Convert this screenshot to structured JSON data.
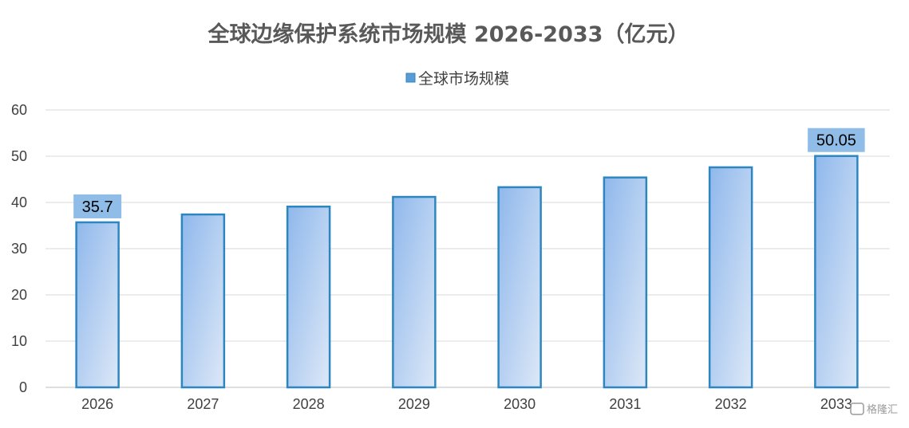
{
  "chart_data": {
    "type": "bar",
    "title": "全球边缘保护系统市场规模 2026-2033（亿元）",
    "legend": {
      "position": "top",
      "entries": [
        "全球市场规模"
      ]
    },
    "categories": [
      "2026",
      "2027",
      "2028",
      "2029",
      "2030",
      "2031",
      "2032",
      "2033"
    ],
    "series": [
      {
        "name": "全球市场规模",
        "values": [
          35.7,
          37.4,
          39.1,
          41.2,
          43.3,
          45.4,
          47.6,
          50.05
        ]
      }
    ],
    "data_labels": [
      {
        "category": "2026",
        "text": "35.7"
      },
      {
        "category": "2033",
        "text": "50.05"
      }
    ],
    "ylim": [
      0,
      60
    ],
    "yticks": [
      "0",
      "10",
      "20",
      "30",
      "40",
      "50",
      "60"
    ],
    "grid": true,
    "colors": {
      "bar_fill_start": "#8fb8ec",
      "bar_fill_end": "#dde8f7",
      "bar_border": "#2e86c1",
      "label_box": "#8fbde8",
      "gridline": "#d9d9d9",
      "legend_marker": "#5b9bd5"
    },
    "watermark": "格隆汇"
  }
}
